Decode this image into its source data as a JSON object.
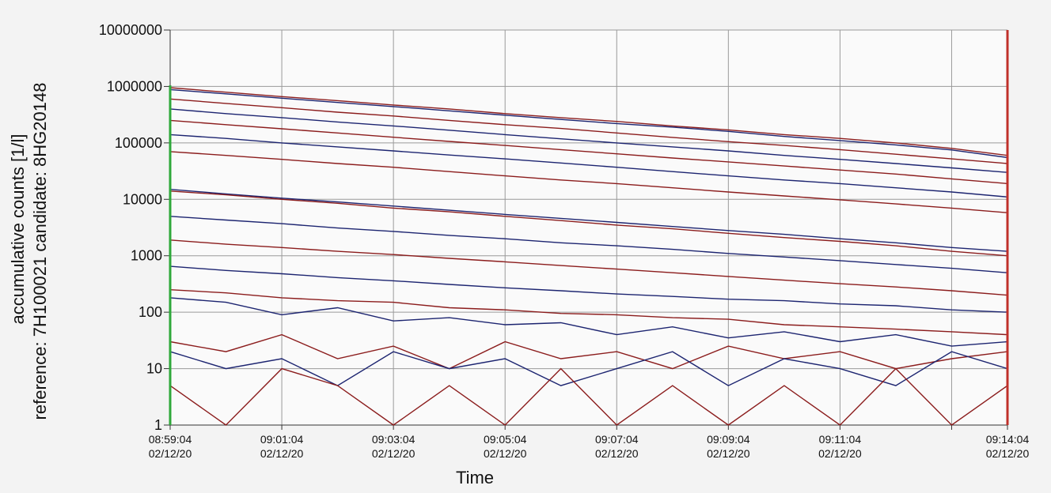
{
  "chart_data": {
    "type": "line",
    "x_title": "Time",
    "y_title": "accumulative counts [1/l]",
    "y_subtitle": "reference: 7H100021   candidate: 8HG20148",
    "log_scale": true,
    "grid": true,
    "ylim": [
      1,
      10000000
    ],
    "yticks": [
      1,
      10,
      100,
      1000,
      10000,
      100000,
      1000000,
      10000000
    ],
    "xlim": [
      "08:59:04",
      "09:14:04"
    ],
    "xticks": [
      {
        "value": "08:59:04",
        "label": "08:59:04",
        "date": "02/12/20"
      },
      {
        "value": "09:01:04",
        "label": "09:01:04",
        "date": "02/12/20"
      },
      {
        "value": "09:03:04",
        "label": "09:03:04",
        "date": "02/12/20"
      },
      {
        "value": "09:05:04",
        "label": "09:05:04",
        "date": "02/12/20"
      },
      {
        "value": "09:07:04",
        "label": "09:07:04",
        "date": "02/12/20"
      },
      {
        "value": "09:09:04",
        "label": "09:09:04",
        "date": "02/12/20"
      },
      {
        "value": "09:11:04",
        "label": "09:11:04",
        "date": "02/12/20"
      },
      {
        "value": "09:13:04"
      },
      {
        "value": "09:14:04",
        "label": "09:14:04",
        "date": "02/12/20"
      }
    ],
    "x": [
      "08:59:04",
      "09:00:04",
      "09:01:04",
      "09:02:04",
      "09:03:04",
      "09:04:04",
      "09:05:04",
      "09:06:04",
      "09:07:04",
      "09:08:04",
      "09:09:04",
      "09:10:04",
      "09:11:04",
      "09:12:04",
      "09:13:04",
      "09:14:04"
    ],
    "series": [
      {
        "color": "#8b1c1c",
        "values": [
          950000,
          790000,
          660000,
          560000,
          470000,
          400000,
          330000,
          280000,
          240000,
          200000,
          170000,
          140000,
          120000,
          100000,
          80000,
          60000
        ]
      },
      {
        "color": "#1c2470",
        "values": [
          880000,
          740000,
          620000,
          520000,
          440000,
          370000,
          310000,
          260000,
          220000,
          190000,
          160000,
          130000,
          110000,
          92000,
          75000,
          55000
        ]
      },
      {
        "color": "#8b1c1c",
        "values": [
          600000,
          500000,
          420000,
          350000,
          300000,
          250000,
          210000,
          180000,
          150000,
          125000,
          105000,
          90000,
          76000,
          63000,
          52000,
          43000
        ]
      },
      {
        "color": "#1c2470",
        "values": [
          400000,
          330000,
          280000,
          235000,
          200000,
          168000,
          140000,
          118000,
          100000,
          85000,
          72000,
          60000,
          51000,
          43000,
          36000,
          30000
        ]
      },
      {
        "color": "#8b1c1c",
        "values": [
          250000,
          210000,
          178000,
          150000,
          126000,
          106000,
          90000,
          76000,
          64000,
          54000,
          46000,
          39000,
          33000,
          28000,
          23000,
          19000
        ]
      },
      {
        "color": "#1c2470",
        "values": [
          140000,
          120000,
          100000,
          85000,
          72000,
          61000,
          52000,
          44000,
          37000,
          31000,
          26000,
          22000,
          19000,
          16000,
          13500,
          11000
        ]
      },
      {
        "color": "#8b1c1c",
        "values": [
          70000,
          60000,
          51000,
          43000,
          37000,
          31000,
          26000,
          22000,
          19000,
          16000,
          13500,
          11500,
          9800,
          8300,
          7000,
          5800
        ]
      },
      {
        "color": "#1c2470",
        "values": [
          15000,
          12500,
          10500,
          9000,
          7600,
          6400,
          5400,
          4600,
          3900,
          3300,
          2800,
          2400,
          2000,
          1700,
          1400,
          1200
        ]
      },
      {
        "color": "#8b1c1c",
        "values": [
          14000,
          12000,
          10000,
          8500,
          7000,
          6000,
          5000,
          4200,
          3500,
          3000,
          2500,
          2100,
          1800,
          1500,
          1200,
          1000
        ]
      },
      {
        "color": "#1c2470",
        "values": [
          5000,
          4300,
          3700,
          3100,
          2700,
          2300,
          2000,
          1700,
          1500,
          1300,
          1100,
          950,
          820,
          700,
          600,
          500
        ]
      },
      {
        "color": "#8b1c1c",
        "values": [
          1900,
          1600,
          1400,
          1200,
          1050,
          900,
          780,
          670,
          580,
          500,
          430,
          370,
          320,
          280,
          240,
          200
        ]
      },
      {
        "color": "#1c2470",
        "values": [
          650,
          550,
          480,
          410,
          360,
          310,
          270,
          240,
          210,
          190,
          170,
          160,
          140,
          130,
          110,
          100
        ]
      },
      {
        "color": "#8b1c1c",
        "values": [
          250,
          220,
          180,
          160,
          150,
          120,
          110,
          95,
          90,
          80,
          75,
          60,
          55,
          50,
          45,
          40
        ]
      },
      {
        "color": "#1c2470",
        "values": [
          180,
          150,
          90,
          120,
          70,
          80,
          60,
          65,
          40,
          55,
          35,
          45,
          30,
          40,
          25,
          30
        ]
      },
      {
        "color": "#8b1c1c",
        "values": [
          30,
          20,
          40,
          15,
          25,
          10,
          30,
          15,
          20,
          10,
          25,
          15,
          20,
          10,
          15,
          20
        ]
      },
      {
        "color": "#1c2470",
        "values": [
          20,
          10,
          15,
          5,
          20,
          10,
          15,
          5,
          10,
          20,
          5,
          15,
          10,
          5,
          20,
          10
        ]
      },
      {
        "color": "#8b1c1c",
        "values": [
          5,
          1,
          10,
          5,
          1,
          5,
          1,
          10,
          1,
          5,
          1,
          5,
          1,
          10,
          1,
          5
        ]
      }
    ]
  }
}
